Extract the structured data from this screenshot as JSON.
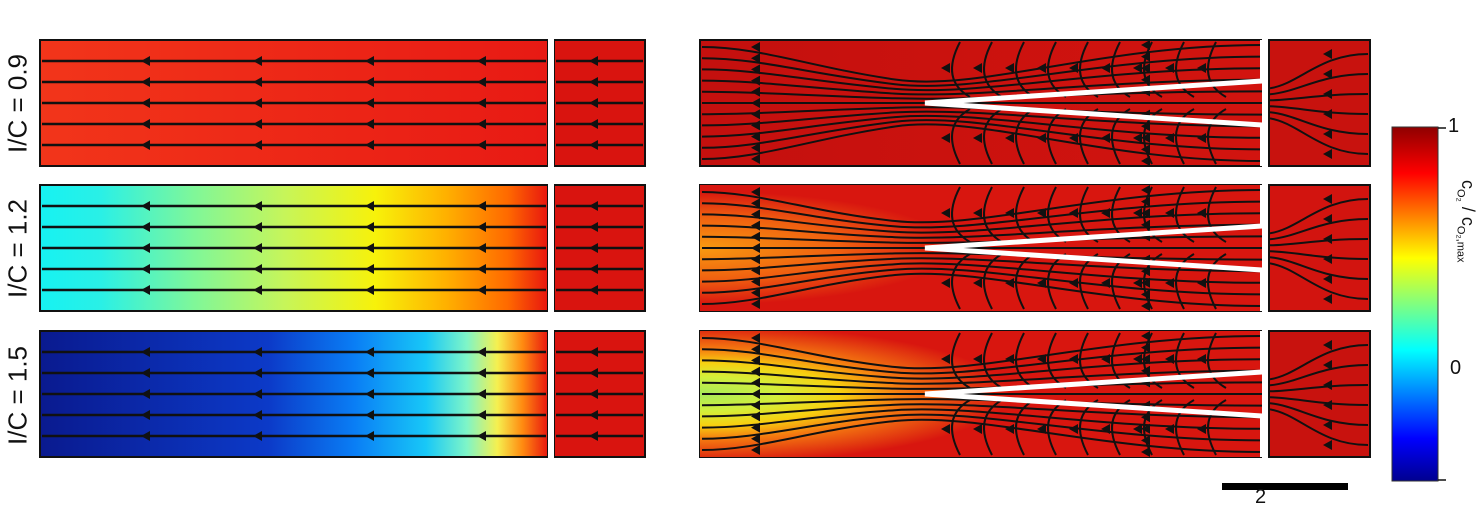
{
  "rows": [
    {
      "label": "I/C = 0.9"
    },
    {
      "label": "I/C = 1.2"
    },
    {
      "label": "I/C = 1.5"
    }
  ],
  "colorbar": {
    "max_label": "1",
    "min_label": "0",
    "title_c": "c",
    "title_sub1": "O₂",
    "title_slash": " / c",
    "title_sub2": "O₂,max"
  },
  "scale_bar": {
    "label": "2"
  }
}
